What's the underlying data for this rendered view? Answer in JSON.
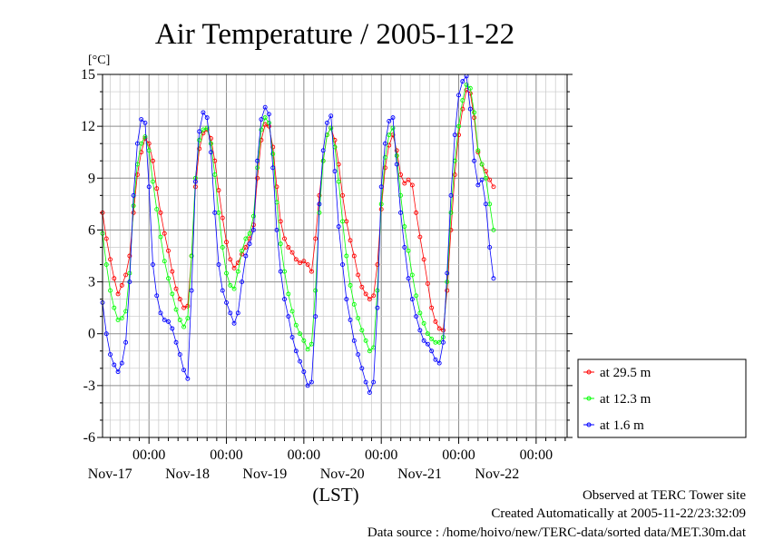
{
  "chart_data": {
    "type": "line",
    "title": "Air Temperature / 2005-11-22",
    "ylabel": "[°C]",
    "xlabel": "(LST)",
    "ylim": [
      -6,
      15
    ],
    "yticks": [
      -6,
      -3,
      0,
      3,
      6,
      9,
      12,
      15
    ],
    "xlim": [
      -0.6,
      5.4
    ],
    "x_unit": "days from Nov-17 00:00",
    "xticks": [
      {
        "x": 0,
        "time": "00:00",
        "date": "Nov-17"
      },
      {
        "x": 1,
        "time": "00:00",
        "date": "Nov-18"
      },
      {
        "x": 2,
        "time": "00:00",
        "date": "Nov-19"
      },
      {
        "x": 3,
        "time": "00:00",
        "date": "Nov-20"
      },
      {
        "x": 4,
        "time": "00:00",
        "date": "Nov-21"
      },
      {
        "x": 5,
        "time": "00:00",
        "date": "Nov-22"
      }
    ],
    "grid": true,
    "legend_position": "lower-right outside",
    "series": [
      {
        "name": "at 29.5 m",
        "color": "#ff0000",
        "points": [
          [
            -0.6,
            7.0
          ],
          [
            -0.55,
            5.5
          ],
          [
            -0.5,
            4.3
          ],
          [
            -0.45,
            3.2
          ],
          [
            -0.4,
            2.3
          ],
          [
            -0.35,
            2.8
          ],
          [
            -0.3,
            3.4
          ],
          [
            -0.25,
            4.5
          ],
          [
            -0.2,
            7.0
          ],
          [
            -0.15,
            9.2
          ],
          [
            -0.1,
            10.5
          ],
          [
            -0.05,
            11.3
          ],
          [
            0.0,
            11.0
          ],
          [
            0.05,
            10.0
          ],
          [
            0.1,
            8.4
          ],
          [
            0.15,
            7.0
          ],
          [
            0.2,
            5.8
          ],
          [
            0.25,
            4.8
          ],
          [
            0.3,
            3.6
          ],
          [
            0.35,
            2.6
          ],
          [
            0.4,
            2.0
          ],
          [
            0.45,
            1.5
          ],
          [
            0.5,
            1.6
          ],
          [
            0.55,
            4.5
          ],
          [
            0.6,
            8.5
          ],
          [
            0.65,
            10.7
          ],
          [
            0.7,
            11.6
          ],
          [
            0.75,
            11.8
          ],
          [
            0.8,
            11.3
          ],
          [
            0.85,
            10.0
          ],
          [
            0.9,
            8.3
          ],
          [
            0.95,
            6.7
          ],
          [
            1.0,
            5.3
          ],
          [
            1.05,
            4.3
          ],
          [
            1.1,
            3.8
          ],
          [
            1.15,
            4.1
          ],
          [
            1.2,
            4.6
          ],
          [
            1.25,
            5.0
          ],
          [
            1.3,
            5.5
          ],
          [
            1.35,
            6.3
          ],
          [
            1.4,
            9.0
          ],
          [
            1.45,
            11.2
          ],
          [
            1.5,
            12.1
          ],
          [
            1.55,
            12.0
          ],
          [
            1.6,
            10.8
          ],
          [
            1.65,
            8.5
          ],
          [
            1.7,
            6.5
          ],
          [
            1.75,
            5.5
          ],
          [
            1.8,
            5.0
          ],
          [
            1.85,
            4.7
          ],
          [
            1.9,
            4.3
          ],
          [
            1.95,
            4.1
          ],
          [
            2.0,
            4.2
          ],
          [
            2.05,
            4.0
          ],
          [
            2.1,
            3.6
          ],
          [
            2.15,
            5.5
          ],
          [
            2.2,
            8.0
          ],
          [
            2.25,
            10.0
          ],
          [
            2.3,
            11.5
          ],
          [
            2.35,
            11.9
          ],
          [
            2.4,
            11.2
          ],
          [
            2.45,
            9.8
          ],
          [
            2.5,
            8.0
          ],
          [
            2.55,
            6.5
          ],
          [
            2.6,
            5.4
          ],
          [
            2.65,
            4.5
          ],
          [
            2.7,
            3.4
          ],
          [
            2.75,
            2.7
          ],
          [
            2.8,
            2.3
          ],
          [
            2.85,
            2.0
          ],
          [
            2.9,
            2.2
          ],
          [
            2.95,
            4.0
          ],
          [
            3.0,
            7.2
          ],
          [
            3.05,
            9.6
          ],
          [
            3.1,
            10.9
          ],
          [
            3.15,
            11.5
          ],
          [
            3.2,
            10.6
          ],
          [
            3.25,
            9.2
          ],
          [
            3.3,
            8.7
          ],
          [
            3.35,
            8.9
          ],
          [
            3.4,
            8.6
          ],
          [
            3.45,
            7.0
          ],
          [
            3.5,
            5.6
          ],
          [
            3.55,
            4.3
          ],
          [
            3.6,
            2.9
          ],
          [
            3.65,
            1.5
          ],
          [
            3.7,
            0.7
          ],
          [
            3.75,
            0.3
          ],
          [
            3.8,
            0.2
          ],
          [
            3.85,
            2.5
          ],
          [
            3.9,
            6.0
          ],
          [
            3.95,
            9.2
          ],
          [
            4.0,
            11.5
          ],
          [
            4.05,
            13.0
          ],
          [
            4.1,
            14.1
          ],
          [
            4.15,
            13.9
          ],
          [
            4.2,
            12.5
          ],
          [
            4.25,
            10.5
          ],
          [
            4.3,
            9.8
          ],
          [
            4.35,
            9.4
          ],
          [
            4.4,
            8.9
          ],
          [
            4.45,
            8.5
          ]
        ]
      },
      {
        "name": "at 12.3 m",
        "color": "#00ff00",
        "points": [
          [
            -0.6,
            5.8
          ],
          [
            -0.55,
            4.0
          ],
          [
            -0.5,
            2.5
          ],
          [
            -0.45,
            1.5
          ],
          [
            -0.4,
            0.8
          ],
          [
            -0.35,
            0.9
          ],
          [
            -0.3,
            1.3
          ],
          [
            -0.25,
            3.5
          ],
          [
            -0.2,
            7.4
          ],
          [
            -0.15,
            9.8
          ],
          [
            -0.1,
            11.0
          ],
          [
            -0.05,
            11.4
          ],
          [
            0.0,
            10.6
          ],
          [
            0.05,
            8.8
          ],
          [
            0.1,
            7.2
          ],
          [
            0.15,
            5.6
          ],
          [
            0.2,
            4.2
          ],
          [
            0.25,
            3.2
          ],
          [
            0.3,
            2.3
          ],
          [
            0.35,
            1.4
          ],
          [
            0.4,
            0.8
          ],
          [
            0.45,
            0.4
          ],
          [
            0.5,
            0.9
          ],
          [
            0.55,
            4.5
          ],
          [
            0.6,
            9.0
          ],
          [
            0.65,
            11.2
          ],
          [
            0.7,
            11.8
          ],
          [
            0.75,
            11.9
          ],
          [
            0.8,
            11.0
          ],
          [
            0.85,
            9.2
          ],
          [
            0.9,
            7.0
          ],
          [
            0.95,
            5.0
          ],
          [
            1.0,
            3.5
          ],
          [
            1.05,
            2.8
          ],
          [
            1.1,
            2.6
          ],
          [
            1.15,
            3.6
          ],
          [
            1.2,
            4.8
          ],
          [
            1.25,
            5.5
          ],
          [
            1.3,
            5.8
          ],
          [
            1.35,
            6.8
          ],
          [
            1.4,
            9.6
          ],
          [
            1.45,
            11.8
          ],
          [
            1.5,
            12.5
          ],
          [
            1.55,
            12.2
          ],
          [
            1.6,
            10.4
          ],
          [
            1.65,
            7.6
          ],
          [
            1.7,
            5.2
          ],
          [
            1.75,
            3.6
          ],
          [
            1.8,
            2.3
          ],
          [
            1.85,
            1.3
          ],
          [
            1.9,
            0.5
          ],
          [
            1.95,
            0.0
          ],
          [
            2.0,
            -0.4
          ],
          [
            2.05,
            -0.9
          ],
          [
            2.1,
            -0.6
          ],
          [
            2.15,
            2.5
          ],
          [
            2.2,
            7.0
          ],
          [
            2.25,
            10.0
          ],
          [
            2.3,
            11.5
          ],
          [
            2.35,
            11.9
          ],
          [
            2.4,
            10.8
          ],
          [
            2.45,
            8.8
          ],
          [
            2.5,
            6.5
          ],
          [
            2.55,
            4.5
          ],
          [
            2.6,
            2.8
          ],
          [
            2.65,
            1.7
          ],
          [
            2.7,
            0.9
          ],
          [
            2.75,
            0.2
          ],
          [
            2.8,
            -0.4
          ],
          [
            2.85,
            -1.0
          ],
          [
            2.9,
            -0.8
          ],
          [
            2.95,
            2.5
          ],
          [
            3.0,
            7.5
          ],
          [
            3.05,
            10.2
          ],
          [
            3.1,
            11.5
          ],
          [
            3.15,
            11.9
          ],
          [
            3.2,
            10.3
          ],
          [
            3.25,
            8.0
          ],
          [
            3.3,
            6.2
          ],
          [
            3.35,
            4.8
          ],
          [
            3.4,
            3.4
          ],
          [
            3.45,
            2.2
          ],
          [
            3.5,
            1.2
          ],
          [
            3.55,
            0.6
          ],
          [
            3.6,
            0.0
          ],
          [
            3.65,
            -0.3
          ],
          [
            3.7,
            -0.5
          ],
          [
            3.75,
            -0.5
          ],
          [
            3.8,
            -0.2
          ],
          [
            3.85,
            3.0
          ],
          [
            3.9,
            7.0
          ],
          [
            3.95,
            10.0
          ],
          [
            4.0,
            12.0
          ],
          [
            4.05,
            13.5
          ],
          [
            4.1,
            14.4
          ],
          [
            4.15,
            14.2
          ],
          [
            4.2,
            12.8
          ],
          [
            4.25,
            10.6
          ],
          [
            4.3,
            9.8
          ],
          [
            4.35,
            9.0
          ],
          [
            4.4,
            7.5
          ],
          [
            4.45,
            6.0
          ]
        ]
      },
      {
        "name": "at 1.6 m",
        "color": "#0000ff",
        "points": [
          [
            -0.6,
            1.8
          ],
          [
            -0.55,
            0.0
          ],
          [
            -0.5,
            -1.2
          ],
          [
            -0.45,
            -1.8
          ],
          [
            -0.4,
            -2.2
          ],
          [
            -0.35,
            -1.7
          ],
          [
            -0.3,
            -0.5
          ],
          [
            -0.25,
            3.0
          ],
          [
            -0.2,
            8.0
          ],
          [
            -0.15,
            11.0
          ],
          [
            -0.1,
            12.4
          ],
          [
            -0.05,
            12.2
          ],
          [
            0.0,
            8.5
          ],
          [
            0.05,
            4.0
          ],
          [
            0.1,
            2.2
          ],
          [
            0.15,
            1.2
          ],
          [
            0.2,
            0.8
          ],
          [
            0.25,
            0.7
          ],
          [
            0.3,
            0.3
          ],
          [
            0.35,
            -0.5
          ],
          [
            0.4,
            -1.2
          ],
          [
            0.45,
            -2.1
          ],
          [
            0.5,
            -2.6
          ],
          [
            0.55,
            2.5
          ],
          [
            0.6,
            8.8
          ],
          [
            0.65,
            11.7
          ],
          [
            0.7,
            12.8
          ],
          [
            0.75,
            12.5
          ],
          [
            0.8,
            10.5
          ],
          [
            0.85,
            7.0
          ],
          [
            0.9,
            4.0
          ],
          [
            0.95,
            2.5
          ],
          [
            1.0,
            1.8
          ],
          [
            1.05,
            1.2
          ],
          [
            1.1,
            0.6
          ],
          [
            1.15,
            1.2
          ],
          [
            1.2,
            3.0
          ],
          [
            1.25,
            4.5
          ],
          [
            1.3,
            5.2
          ],
          [
            1.35,
            6.0
          ],
          [
            1.4,
            10.0
          ],
          [
            1.45,
            12.4
          ],
          [
            1.5,
            13.1
          ],
          [
            1.55,
            12.7
          ],
          [
            1.6,
            9.6
          ],
          [
            1.65,
            6.0
          ],
          [
            1.7,
            3.6
          ],
          [
            1.75,
            2.0
          ],
          [
            1.8,
            1.0
          ],
          [
            1.85,
            -0.2
          ],
          [
            1.9,
            -1.0
          ],
          [
            1.95,
            -1.6
          ],
          [
            2.0,
            -2.2
          ],
          [
            2.05,
            -3.0
          ],
          [
            2.1,
            -2.8
          ],
          [
            2.15,
            1.0
          ],
          [
            2.2,
            7.5
          ],
          [
            2.25,
            10.6
          ],
          [
            2.3,
            12.2
          ],
          [
            2.35,
            12.6
          ],
          [
            2.4,
            9.4
          ],
          [
            2.45,
            6.2
          ],
          [
            2.5,
            4.0
          ],
          [
            2.55,
            2.0
          ],
          [
            2.6,
            0.8
          ],
          [
            2.65,
            -0.4
          ],
          [
            2.7,
            -1.2
          ],
          [
            2.75,
            -2.0
          ],
          [
            2.8,
            -2.8
          ],
          [
            2.85,
            -3.4
          ],
          [
            2.9,
            -2.8
          ],
          [
            2.95,
            1.5
          ],
          [
            3.0,
            8.5
          ],
          [
            3.05,
            11.0
          ],
          [
            3.1,
            12.3
          ],
          [
            3.15,
            12.5
          ],
          [
            3.2,
            9.8
          ],
          [
            3.25,
            7.0
          ],
          [
            3.3,
            5.0
          ],
          [
            3.35,
            3.2
          ],
          [
            3.4,
            2.0
          ],
          [
            3.45,
            1.0
          ],
          [
            3.5,
            0.2
          ],
          [
            3.55,
            -0.4
          ],
          [
            3.6,
            -0.6
          ],
          [
            3.65,
            -1.0
          ],
          [
            3.7,
            -1.5
          ],
          [
            3.75,
            -1.7
          ],
          [
            3.8,
            -0.5
          ],
          [
            3.85,
            3.5
          ],
          [
            3.9,
            8.0
          ],
          [
            3.95,
            11.5
          ],
          [
            4.0,
            13.8
          ],
          [
            4.05,
            14.6
          ],
          [
            4.1,
            14.9
          ],
          [
            4.15,
            13.0
          ],
          [
            4.2,
            10.0
          ],
          [
            4.25,
            8.6
          ],
          [
            4.3,
            8.9
          ],
          [
            4.35,
            7.5
          ],
          [
            4.4,
            5.0
          ],
          [
            4.45,
            3.2
          ]
        ]
      }
    ]
  },
  "footer": {
    "line1": "Observed at TERC Tower site",
    "line2": "Created Automatically at 2005-11-22/23:32:09",
    "line3": "Data source : /home/hoivo/new/TERC-data/sorted  data/MET.30m.dat"
  }
}
